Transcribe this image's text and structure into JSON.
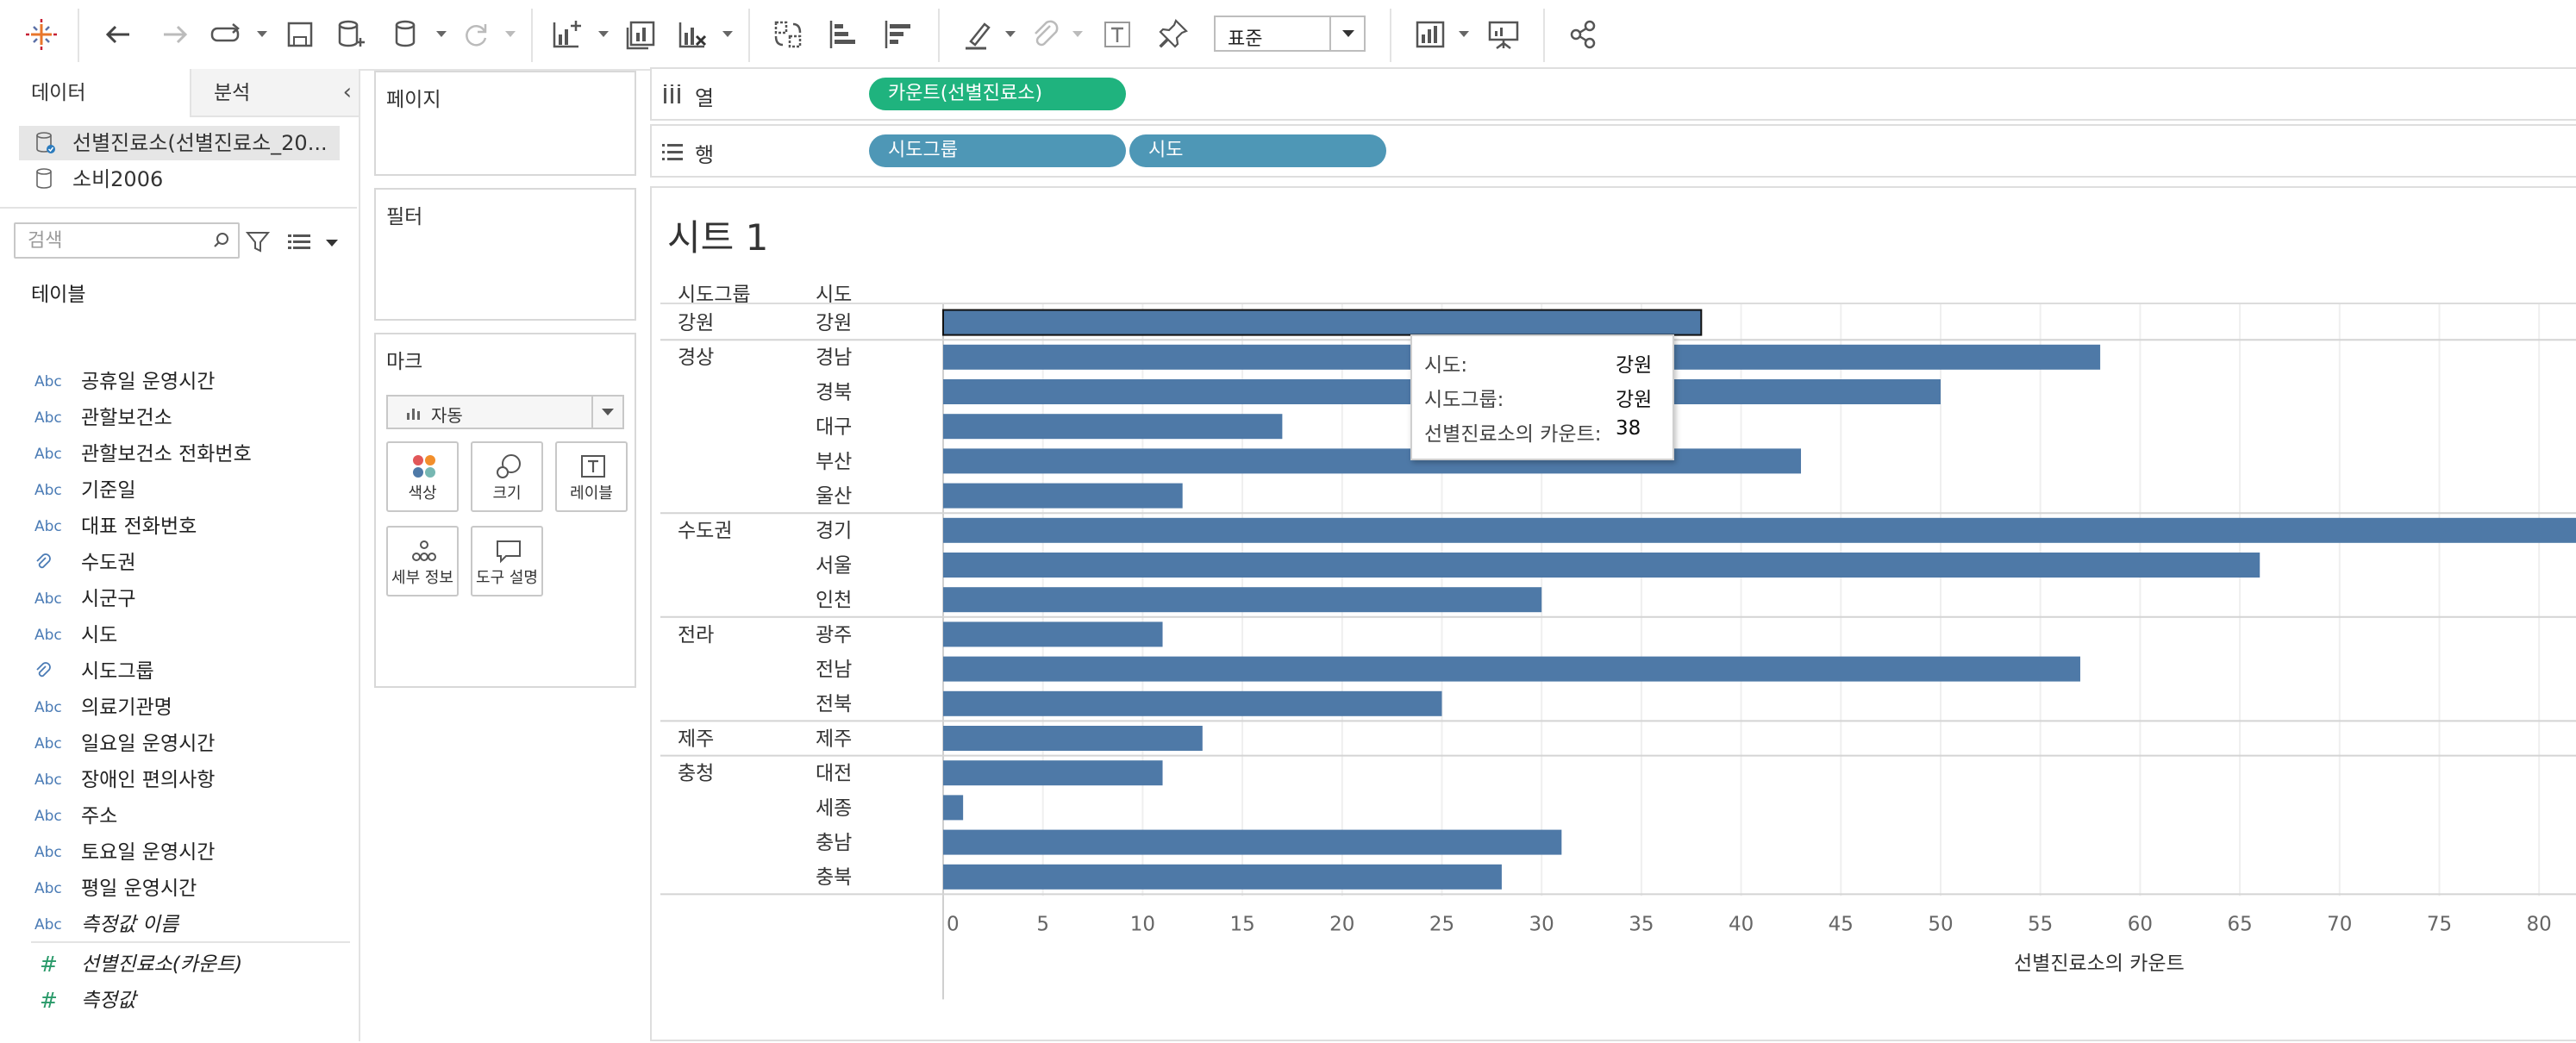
{
  "toolbar": {
    "style_select": "표준",
    "icons": [
      "tableau-logo-icon",
      "undo-icon",
      "redo-icon",
      "replay-icon",
      "save-icon",
      "new-datasource-icon",
      "datasource-icon",
      "refresh-icon",
      "new-worksheet-icon",
      "duplicate-sheet-icon",
      "clear-sheet-icon",
      "swap-rows-columns-icon",
      "sort-ascending-icon",
      "sort-descending-icon",
      "highlight-icon",
      "group-icon",
      "show-mark-labels-icon",
      "pin-icon",
      "show-me-icon",
      "presentation-mode-icon",
      "share-icon"
    ]
  },
  "data_pane": {
    "tab_data": "데이터",
    "tab_analysis": "분석",
    "sources": [
      "선별진료소(선별진료소_20...",
      "소비2006"
    ],
    "search_placeholder": "검색",
    "tables_heading": "테이블",
    "fields": [
      {
        "type": "Abc",
        "name": "공휴일 운영시간"
      },
      {
        "type": "Abc",
        "name": "관할보건소"
      },
      {
        "type": "Abc",
        "name": "관할보건소 전화번호"
      },
      {
        "type": "Abc",
        "name": "기준일"
      },
      {
        "type": "Abc",
        "name": "대표 전화번호"
      },
      {
        "type": "clip",
        "name": "수도권"
      },
      {
        "type": "Abc",
        "name": "시군구"
      },
      {
        "type": "Abc",
        "name": "시도"
      },
      {
        "type": "clip",
        "name": "시도그룹"
      },
      {
        "type": "Abc",
        "name": "의료기관명"
      },
      {
        "type": "Abc",
        "name": "일요일 운영시간"
      },
      {
        "type": "Abc",
        "name": "장애인 편의사항"
      },
      {
        "type": "Abc",
        "name": "주소"
      },
      {
        "type": "Abc",
        "name": "토요일 운영시간"
      },
      {
        "type": "Abc",
        "name": "평일 운영시간"
      },
      {
        "type": "Abc",
        "name": "측정값 이름"
      }
    ],
    "measures": [
      "선별진료소(카운트)",
      "측정값"
    ]
  },
  "cards": {
    "pages": "페이지",
    "filters": "필터",
    "marks": "마크",
    "marks_type": "자동",
    "mark_buttons": [
      "색상",
      "크기",
      "레이블",
      "세부 정보",
      "도구 설명"
    ]
  },
  "shelves": {
    "columns_label": "열",
    "rows_label": "행",
    "column_pills": [
      "카운트(선별진료소)"
    ],
    "row_pills": [
      "시도그룹",
      "시도"
    ]
  },
  "sheet": {
    "title": "시트 1",
    "row_headers": [
      "시도그룹",
      "시도"
    ],
    "x_axis_title": "선별진료소의 카운트"
  },
  "tooltip": {
    "rows": [
      {
        "key": "시도:",
        "value": "강원"
      },
      {
        "key": "시도그룹:",
        "value": "강원"
      },
      {
        "key": "선별진료소의 카운트:",
        "value": "38"
      }
    ]
  },
  "colors": {
    "bar": "#4e79a7",
    "pill_measure": "#1fb37e",
    "pill_dimension": "#4e97b6"
  },
  "chart_data": {
    "type": "bar",
    "orientation": "horizontal",
    "groups": [
      {
        "group": "강원",
        "items": [
          {
            "label": "강원",
            "value": 38
          }
        ]
      },
      {
        "group": "경상",
        "items": [
          {
            "label": "경남",
            "value": 58
          },
          {
            "label": "경북",
            "value": 50
          },
          {
            "label": "대구",
            "value": 17
          },
          {
            "label": "부산",
            "value": 43
          },
          {
            "label": "울산",
            "value": 12
          }
        ]
      },
      {
        "group": "수도권",
        "items": [
          {
            "label": "경기",
            "value": 83
          },
          {
            "label": "서울",
            "value": 66
          },
          {
            "label": "인천",
            "value": 30
          }
        ]
      },
      {
        "group": "전라",
        "items": [
          {
            "label": "광주",
            "value": 11
          },
          {
            "label": "전남",
            "value": 57
          },
          {
            "label": "전북",
            "value": 25
          }
        ]
      },
      {
        "group": "제주",
        "items": [
          {
            "label": "제주",
            "value": 13
          }
        ]
      },
      {
        "group": "충청",
        "items": [
          {
            "label": "대전",
            "value": 11
          },
          {
            "label": "세종",
            "value": 1
          },
          {
            "label": "충남",
            "value": 31
          },
          {
            "label": "충북",
            "value": 28
          }
        ]
      }
    ],
    "xticks": [
      0,
      5,
      10,
      15,
      20,
      25,
      30,
      35,
      40,
      45,
      50,
      55,
      60,
      65,
      70,
      75,
      80
    ],
    "xlabel": "선별진료소의 카운트",
    "selected": "강원"
  }
}
